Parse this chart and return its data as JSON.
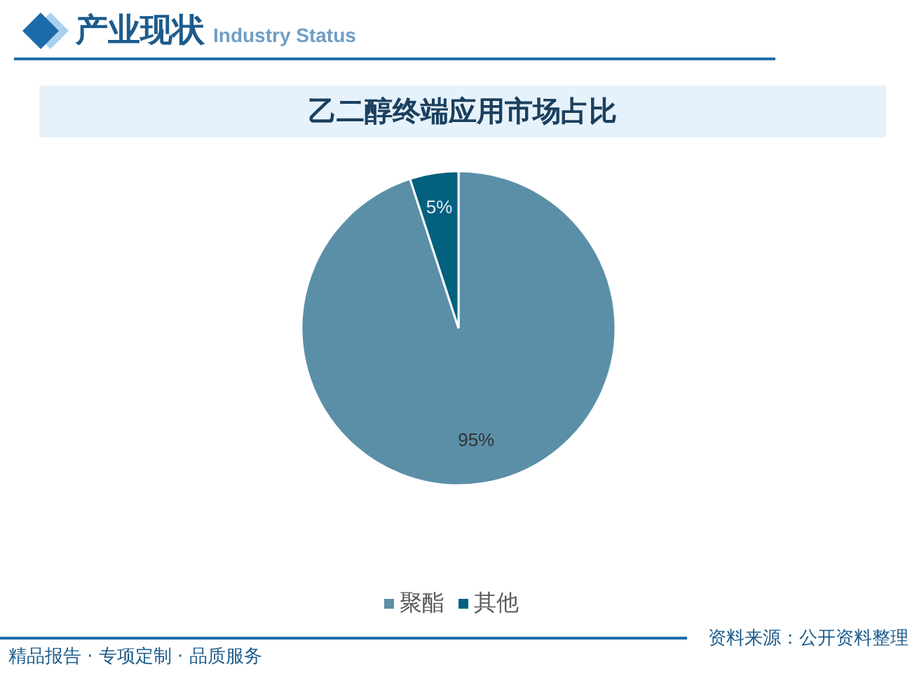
{
  "chart_data": {
    "type": "pie",
    "title": "乙二醇终端应用市场占比",
    "categories": [
      "聚酯",
      "其他"
    ],
    "values": [
      95,
      5
    ],
    "colors": [
      "#5b8fa8",
      "#04607f"
    ],
    "value_labels": [
      "95%",
      "5%"
    ],
    "legend": "bottom",
    "annotations": [
      "产业现状",
      "Industry Status",
      "资料来源：公开资料整理",
      "精品报告 · 专项定制 · 品质服务"
    ]
  }
}
